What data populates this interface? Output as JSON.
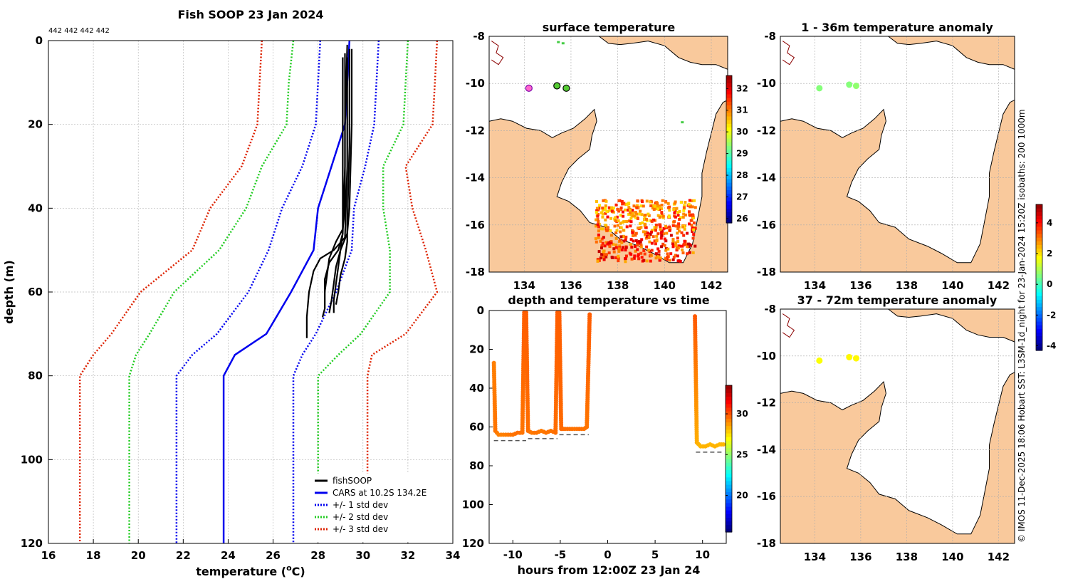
{
  "profile": {
    "title": "Fish SOOP 23 Jan 2024",
    "ids_label": "442 442 442 442",
    "xlabel_pre": "temperature (",
    "xlabel_sup": "o",
    "xlabel_post": "C)",
    "ylabel": "depth (m)",
    "legend": [
      "fishSOOP",
      "CARS at 10.2S 134.2E",
      "+/- 1 std dev",
      "+/- 2 std dev",
      "+/- 3 std dev"
    ]
  },
  "map_sst": {
    "title": "surface temperature"
  },
  "map_anom1": {
    "title": "1 - 36m temperature anomaly"
  },
  "map_anom2": {
    "title": "37 - 72m temperature anomaly"
  },
  "timeplot": {
    "title": "depth and temperature vs time",
    "xlabel": "hours from 12:00Z 23 Jan 24"
  },
  "credit": "© IMOS 11-Dec-2025 18:06 Hobart SST: L3SM-1d_night for 23-Jan-2024 15:20Z isobaths: 200  1000m",
  "colors": {
    "land": "#f9c99c",
    "fish": "#000000",
    "cars": "#0000ee",
    "sd1": "#0000ee",
    "sd2": "#22cc22",
    "sd3": "#dd2200"
  },
  "chart_data": [
    {
      "name": "profile",
      "type": "line",
      "title": "Fish SOOP 23 Jan 2024",
      "xlabel": "temperature (oC)",
      "ylabel": "depth (m)",
      "xlim": [
        16,
        34
      ],
      "ylim": [
        0,
        120
      ],
      "xticks": [
        16,
        18,
        20,
        22,
        24,
        26,
        28,
        30,
        32,
        34
      ],
      "yticks": [
        0,
        20,
        40,
        60,
        80,
        100,
        120
      ],
      "depth": [
        0,
        10,
        20,
        30,
        40,
        50,
        60,
        70,
        75,
        80,
        100,
        120
      ],
      "series": [
        {
          "name": "CARS at 10.2S 134.2E",
          "values": [
            29.4,
            29.3,
            29.2,
            28.6,
            28.0,
            27.8,
            26.8,
            25.7,
            24.3,
            23.8,
            23.8,
            23.8
          ]
        },
        {
          "name": "+/- 1 std dev upper",
          "values": [
            30.7,
            30.6,
            30.5,
            30.1,
            29.6,
            29.5,
            28.8,
            27.9,
            27.3,
            26.9,
            26.9,
            26.9
          ]
        },
        {
          "name": "+/- 1 std dev lower",
          "values": [
            28.1,
            28.0,
            27.9,
            27.3,
            26.4,
            25.8,
            24.9,
            23.5,
            22.4,
            21.7,
            21.7,
            21.7
          ]
        },
        {
          "name": "+/- 2 std dev upper",
          "values": [
            32.0,
            31.9,
            31.8,
            30.9,
            30.9,
            31.2,
            31.2,
            29.9,
            28.9,
            28.0,
            28.0,
            28.0
          ]
        },
        {
          "name": "+/- 2 std dev lower",
          "values": [
            26.9,
            26.7,
            26.6,
            25.5,
            24.8,
            23.6,
            21.6,
            20.5,
            19.9,
            19.6,
            19.6,
            19.6
          ]
        },
        {
          "name": "+/- 3 std dev upper",
          "values": [
            33.3,
            33.2,
            33.1,
            31.9,
            32.2,
            32.8,
            33.3,
            31.9,
            30.4,
            30.2,
            30.2,
            30.2
          ]
        },
        {
          "name": "+/- 3 std dev lower",
          "values": [
            25.5,
            25.4,
            25.3,
            24.6,
            23.2,
            22.4,
            20.1,
            18.8,
            18.0,
            17.4,
            17.4,
            17.4
          ]
        }
      ],
      "fishsoop_casts": [
        {
          "depth": [
            1,
            20,
            40,
            45,
            48,
            52,
            56,
            60,
            64,
            66
          ],
          "values": [
            29.3,
            29.2,
            29.2,
            29.1,
            28.8,
            28.5,
            28.4,
            28.3,
            28.3,
            28.2
          ]
        },
        {
          "depth": [
            2,
            20,
            40,
            46,
            50,
            54,
            58,
            62,
            65
          ],
          "values": [
            29.5,
            29.5,
            29.4,
            29.3,
            29.0,
            28.8,
            28.7,
            28.6,
            28.5
          ]
        },
        {
          "depth": [
            2,
            25,
            44,
            48,
            52,
            56,
            60,
            63
          ],
          "values": [
            29.4,
            29.4,
            29.3,
            29.3,
            29.2,
            29.0,
            28.9,
            28.8
          ]
        },
        {
          "depth": [
            3,
            30,
            46,
            50,
            53,
            57,
            61,
            64
          ],
          "values": [
            29.2,
            29.2,
            29.1,
            28.9,
            28.5,
            28.3,
            28.3,
            28.3
          ]
        },
        {
          "depth": [
            4,
            30,
            47,
            50,
            52,
            55,
            60,
            66,
            71
          ],
          "values": [
            29.3,
            29.3,
            29.2,
            28.7,
            28.1,
            27.8,
            27.6,
            27.5,
            27.5
          ]
        },
        {
          "depth": [
            4,
            25,
            46,
            50,
            54,
            58,
            62,
            65
          ],
          "values": [
            29.1,
            29.1,
            29.1,
            29.0,
            28.9,
            28.8,
            28.7,
            28.7
          ]
        }
      ]
    },
    {
      "name": "surface temperature",
      "type": "heatmap",
      "title": "surface temperature",
      "xlim": [
        132.5,
        142.7
      ],
      "ylim": [
        -18,
        -8
      ],
      "xticks": [
        134,
        136,
        138,
        140,
        142
      ],
      "yticks": [
        -8,
        -10,
        -12,
        -14,
        -16,
        -18
      ],
      "colorbar": {
        "range": [
          25.8,
          32.6
        ],
        "ticks": [
          26,
          27,
          28,
          29,
          30,
          31,
          32
        ]
      },
      "stations": [
        [
          134.2,
          -10.2
        ],
        [
          135.4,
          -10.1
        ],
        [
          135.8,
          -10.2
        ]
      ]
    },
    {
      "name": "1 - 36m temperature anomaly",
      "type": "scatter",
      "title": "1 - 36m temperature anomaly",
      "xlim": [
        132.5,
        142.7
      ],
      "ylim": [
        -18,
        -8
      ],
      "xticks": [
        134,
        136,
        138,
        140,
        142
      ],
      "yticks": [
        -8,
        -10,
        -12,
        -14,
        -16,
        -18
      ],
      "colorbar": {
        "range": [
          -4.3,
          5.2
        ],
        "ticks": [
          -4,
          -2,
          0,
          2,
          4
        ]
      },
      "points": [
        {
          "lon": 134.2,
          "lat": -10.2,
          "value": 0.5
        },
        {
          "lon": 135.5,
          "lat": -10.05,
          "value": 0.5
        },
        {
          "lon": 135.8,
          "lat": -10.1,
          "value": 0.6
        }
      ]
    },
    {
      "name": "37 - 72m temperature anomaly",
      "type": "scatter",
      "title": "37 - 72m temperature anomaly",
      "xlim": [
        132.5,
        142.7
      ],
      "ylim": [
        -18,
        -8
      ],
      "xticks": [
        134,
        136,
        138,
        140,
        142
      ],
      "yticks": [
        -8,
        -10,
        -12,
        -14,
        -16,
        -18
      ],
      "colorbar": {
        "range": [
          -4.3,
          5.2
        ],
        "ticks": [
          -4,
          -2,
          0,
          2,
          4
        ]
      },
      "points": [
        {
          "lon": 134.2,
          "lat": -10.2,
          "value": 1.6
        },
        {
          "lon": 135.5,
          "lat": -10.05,
          "value": 1.7
        },
        {
          "lon": 135.8,
          "lat": -10.1,
          "value": 1.7
        }
      ]
    },
    {
      "name": "depth and temperature vs time",
      "type": "scatter",
      "title": "depth and temperature vs time",
      "xlabel": "hours from 12:00Z 23 Jan 24",
      "ylabel": "",
      "xlim": [
        -12.5,
        12.5
      ],
      "ylim": [
        0,
        120
      ],
      "xticks": [
        -10,
        -5,
        0,
        5,
        10
      ],
      "yticks": [
        0,
        20,
        40,
        60,
        80,
        100,
        120
      ],
      "colorbar": {
        "range": [
          15.5,
          33.5
        ],
        "ticks": [
          20,
          25,
          30
        ]
      },
      "track": [
        [
          -12.0,
          27
        ],
        [
          -11.85,
          62
        ],
        [
          -11.5,
          64
        ],
        [
          -11.0,
          64
        ],
        [
          -10.5,
          64
        ],
        [
          -10.0,
          64
        ],
        [
          -9.5,
          63
        ],
        [
          -9.0,
          63
        ],
        [
          -8.8,
          1
        ],
        [
          -8.6,
          1
        ],
        [
          -8.4,
          62
        ],
        [
          -8.0,
          63
        ],
        [
          -7.5,
          63
        ],
        [
          -7.0,
          62
        ],
        [
          -6.5,
          63
        ],
        [
          -6.0,
          62
        ],
        [
          -5.5,
          63
        ],
        [
          -5.3,
          1
        ],
        [
          -5.1,
          1
        ],
        [
          -4.9,
          61
        ],
        [
          -4.5,
          61
        ],
        [
          -4.0,
          61
        ],
        [
          -3.5,
          61
        ],
        [
          -3.0,
          61
        ],
        [
          -2.5,
          61
        ],
        [
          -2.2,
          60
        ],
        [
          -1.9,
          2
        ],
        [
          9.2,
          3
        ],
        [
          9.4,
          68
        ],
        [
          9.8,
          70
        ],
        [
          10.3,
          70
        ],
        [
          10.8,
          69
        ],
        [
          11.3,
          70
        ],
        [
          11.8,
          69
        ],
        [
          12.2,
          69
        ]
      ],
      "track_temps": [
        29.0,
        29.2,
        29.0,
        29.0,
        29.1,
        29.2,
        29.3,
        29.2,
        29.6,
        29.6,
        29.3,
        29.1,
        29.2,
        29.1,
        29.2,
        29.2,
        29.3,
        29.6,
        29.6,
        29.4,
        29.3,
        29.3,
        29.2,
        29.3,
        29.2,
        29.2,
        29.6,
        29.7,
        28.2,
        28.0,
        28.1,
        28.0,
        28.1,
        28.0,
        28.0
      ],
      "bottom": [
        [
          -12.0,
          67
        ],
        [
          -8.6,
          67
        ],
        [
          -8.4,
          66
        ],
        [
          -5.3,
          66
        ],
        [
          -5.1,
          64
        ],
        [
          -2.0,
          64
        ],
        [
          9.3,
          73
        ],
        [
          12.2,
          73
        ]
      ]
    }
  ]
}
